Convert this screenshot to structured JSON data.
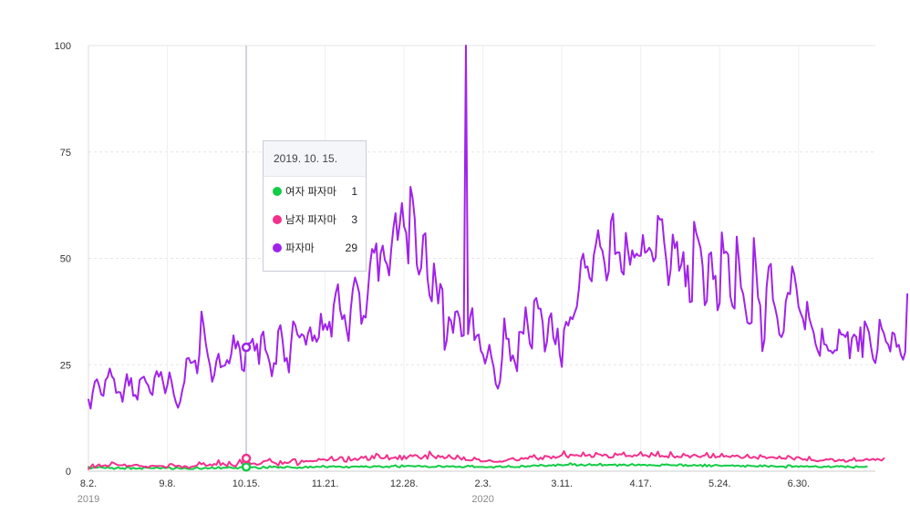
{
  "chart_data": {
    "type": "line",
    "ylim": [
      0,
      100
    ],
    "yticks": [
      "0",
      "25",
      "50",
      "75",
      "100"
    ],
    "grid": true,
    "xticks": [
      {
        "label": "8.2.",
        "index": 0
      },
      {
        "label": "9.8.",
        "index": 37
      },
      {
        "label": "10.15.",
        "index": 74
      },
      {
        "label": "11.21.",
        "index": 111
      },
      {
        "label": "12.28.",
        "index": 148
      },
      {
        "label": "2.3.",
        "index": 185
      },
      {
        "label": "3.11.",
        "index": 222
      },
      {
        "label": "4.17.",
        "index": 259
      },
      {
        "label": "5.24.",
        "index": 296
      },
      {
        "label": "6.30.",
        "index": 333
      }
    ],
    "year_labels": [
      {
        "label": "2019",
        "index": 0
      },
      {
        "label": "2020",
        "index": 185
      }
    ],
    "x_count": 370,
    "hover_index": 74,
    "series": [
      {
        "name": "여자 파자마",
        "color": "#11cc44",
        "values": [
          1,
          0.6,
          0.8,
          1,
          0.8,
          1,
          0.9,
          0.8,
          0.7,
          1,
          0.7,
          0.8,
          0.5,
          0.7,
          0.9,
          0.6,
          0.7,
          0.5,
          0.9,
          0.9,
          0.5,
          0.8,
          0.6,
          0.6,
          0.7,
          0.5,
          0.9,
          0.8,
          0.8,
          0.7,
          0.7,
          0.7,
          0.9,
          0.7,
          0.6,
          0.9,
          0.7,
          0.8,
          0.9,
          0.5,
          0.5,
          0.8,
          0.8,
          0.6,
          0.6,
          0.8,
          0.6,
          0.5,
          0.5,
          0.5,
          0.7,
          0.9,
          0.6,
          0.5,
          0.7,
          0.8,
          0.6,
          0.7,
          0.9,
          0.6,
          0.7,
          1,
          0.6,
          0.8,
          0.8,
          0.8,
          1,
          0.8,
          0.7,
          0.8,
          0.6,
          0.9,
          0.9,
          1.2,
          1,
          0.9,
          0.9,
          0.9,
          1,
          0.8,
          0.6,
          0.7,
          1.1,
          0.8,
          0.7,
          1.2,
          0.9,
          1.1,
          1,
          0.8,
          1,
          0.8,
          0.8,
          1.1,
          1,
          0.9,
          0.8,
          0.8,
          0.7,
          0.9,
          0.7,
          0.9,
          1.1,
          0.8,
          1.1,
          0.9,
          0.9,
          1.1,
          1,
          1,
          1.3,
          1,
          0.9,
          1.1,
          1.1,
          1.2,
          1,
          1.1,
          1.1,
          0.9,
          0.9,
          1.1,
          0.8,
          1,
          1.1,
          1.1,
          1.1,
          1,
          1.2,
          1,
          1.2,
          1,
          0.9,
          1,
          1.2,
          1.1,
          1.2,
          1.1,
          0.9,
          1,
          1.1,
          0.9,
          1.2,
          1.2,
          1.4,
          1,
          0.9,
          1.4,
          1.1,
          1.2,
          1.3,
          1.2,
          1.2,
          1.1,
          1.2,
          1.3,
          1.1,
          1.1,
          1.2,
          1,
          0.9,
          1,
          1,
          1,
          1.3,
          1.2,
          1,
          1,
          1.2,
          1.1,
          1.1,
          1.2,
          1,
          1,
          1.1,
          0.9,
          0.9,
          1.1,
          1.3,
          1.1,
          1.3,
          0.9,
          1,
          1,
          1,
          1,
          0.9,
          0.9,
          1,
          1,
          0.8,
          1.1,
          1.1,
          1.2,
          0.9,
          1,
          1,
          1.3,
          1,
          1,
          0.9,
          1,
          0.9,
          1.3,
          1.2,
          1,
          1.2,
          1.1,
          1.3,
          1.4,
          1.3,
          1.2,
          1.5,
          1.4,
          1.2,
          1.2,
          1.4,
          1.3,
          1.5,
          1.2,
          1.6,
          1.5,
          1.4,
          1.4,
          1.5,
          1.5,
          1.9,
          1.5,
          1.7,
          1.3,
          1.4,
          1.6,
          1.4,
          1.3,
          1.5,
          1.7,
          1.4,
          1.5,
          1.4,
          1.5,
          1.8,
          1.3,
          1.5,
          1.4,
          1.5,
          1.5,
          1.5,
          1.6,
          1.2,
          1.6,
          1.4,
          1.6,
          1.4,
          1.3,
          1.5,
          1.7,
          1.4,
          1.4,
          1.6,
          1.4,
          1.5,
          1.5,
          1.3,
          1.5,
          1.4,
          1.4,
          1.3,
          1.3,
          1.2,
          1.6,
          1.5,
          1.6,
          1.5,
          1.4,
          1.4,
          1.4,
          1.3,
          1.6,
          1.6,
          1.2,
          1.5,
          1.2,
          1.3,
          1.3,
          1.5,
          1.3,
          1.3,
          1.5,
          1.1,
          1.6,
          1.1,
          1.5,
          1.1,
          1.3,
          1.5,
          1.4,
          1.3,
          1.2,
          1.3,
          1.3,
          1.3,
          1.3,
          1.4,
          1.2,
          1.3,
          1.3,
          1.1,
          1.3,
          1,
          1.4,
          1.3,
          1.2,
          1.2,
          1.1,
          1.1,
          1.4,
          1.1,
          1.4,
          1.2,
          1,
          1.3,
          1.2,
          1.1,
          1,
          1.1,
          1.1,
          1.1,
          0.8,
          1.4,
          1.4,
          1,
          1.1,
          1.2,
          1,
          1.2,
          1.1,
          1.1,
          1.2,
          1,
          1.1,
          1.1,
          1.2,
          1,
          0.9,
          0.9,
          1.1,
          1,
          1.2,
          0.9,
          1,
          1.1,
          1.2,
          1.1,
          1.2,
          1.1,
          0.9,
          1.2,
          1,
          0.9,
          0.8,
          1.2,
          1,
          1,
          1,
          1,
          1.1
        ]
      },
      {
        "name": "남자 파자마",
        "color": "#f2318c",
        "values": [
          0.5,
          1,
          1.6,
          0.8,
          1.3,
          1.6,
          1.1,
          1.3,
          1.4,
          1.1,
          1.4,
          2.1,
          1.9,
          1.6,
          1.4,
          1.4,
          1.4,
          1.6,
          1.1,
          1.3,
          1.2,
          1.4,
          1.5,
          1.5,
          1.2,
          1.2,
          1,
          1.1,
          0.8,
          1.2,
          1.3,
          1.2,
          1.2,
          1.2,
          1.2,
          1.2,
          0.9,
          0.9,
          1.6,
          1.7,
          1.4,
          1.1,
          1.3,
          1.2,
          0.8,
          1.2,
          1.1,
          0.7,
          1,
          1.1,
          1.2,
          1.4,
          2.1,
          1.6,
          1.9,
          1.3,
          1.3,
          1.6,
          1.3,
          1.7,
          1.5,
          2.6,
          1.4,
          1.9,
          1.5,
          1.2,
          2.2,
          1.5,
          1.3,
          1.1,
          1.8,
          2.7,
          1.8,
          2.8,
          3,
          2.3,
          1.7,
          1.8,
          1.8,
          1.5,
          1.6,
          1.8,
          2.3,
          2.4,
          2.5,
          2.9,
          2.2,
          2,
          1.8,
          1.3,
          2.4,
          1.7,
          2.1,
          1.9,
          2,
          2.4,
          2.8,
          2.8,
          1.4,
          1.8,
          2.5,
          2.2,
          2.4,
          2.3,
          2.4,
          2.3,
          2.4,
          2.4,
          2.9,
          2.7,
          2.8,
          2.7,
          2.5,
          2.9,
          3.4,
          2.5,
          2.6,
          2.8,
          3.3,
          3.3,
          2.3,
          2.2,
          3.4,
          2.5,
          2.7,
          3,
          2.6,
          2.9,
          3.4,
          3.1,
          3.5,
          2.6,
          2.7,
          3.6,
          3,
          4.1,
          3.8,
          3.1,
          3,
          3.1,
          3.8,
          2.7,
          3.1,
          3.1,
          3.3,
          2.8,
          3.7,
          2.7,
          3.6,
          2.9,
          3.4,
          3.8,
          3.5,
          3.8,
          3.7,
          3.2,
          2.9,
          3.3,
          3.8,
          2.9,
          4.6,
          3.8,
          3.4,
          3,
          3.7,
          3.3,
          3.5,
          3,
          3.2,
          3.8,
          3.3,
          2.9,
          2.9,
          3.7,
          3.2,
          2.7,
          3.3,
          2.6,
          2.6,
          2.5,
          2.6,
          3.2,
          2.8,
          2.8,
          2.3,
          2.3,
          2.3,
          2.4,
          2.6,
          2.4,
          2.2,
          2.2,
          2.2,
          2.3,
          2.2,
          2.4,
          2.5,
          2.8,
          2.9,
          3.1,
          2.7,
          2.5,
          2.6,
          3.1,
          2.9,
          3.1,
          2.9,
          3.5,
          3.3,
          3.8,
          3.1,
          2.7,
          3.2,
          2.8,
          3.6,
          3.5,
          3.4,
          3,
          3.5,
          3.1,
          3.3,
          3.5,
          3.8,
          4.7,
          3.6,
          3.2,
          3.9,
          3.8,
          3.7,
          3.8,
          3.6,
          3.5,
          4.4,
          3.6,
          3.7,
          3.9,
          3.3,
          3.4,
          4.3,
          4,
          3.9,
          3.6,
          3.9,
          3.8,
          3.2,
          3.2,
          3.3,
          4.2,
          3.8,
          4,
          3.9,
          4.4,
          3.5,
          3.6,
          3.6,
          3.4,
          3.8,
          3.6,
          3.9,
          4.5,
          3.6,
          3.8,
          3.6,
          3.3,
          4.3,
          3.8,
          3.6,
          4.6,
          3.4,
          3.6,
          3.4,
          3.5,
          3.2,
          4.5,
          3.6,
          3.2,
          3.5,
          3.3,
          3.3,
          4.1,
          3.7,
          3.7,
          3.2,
          3.6,
          3.9,
          3.7,
          3.4,
          3.3,
          3.6,
          3.7,
          4.3,
          3.3,
          3.2,
          4.1,
          3.2,
          3.4,
          3.4,
          4.1,
          3.4,
          3.6,
          3.4,
          3.3,
          3.7,
          3.5,
          3.7,
          3.5,
          3.1,
          3.1,
          3.4,
          3.9,
          3.2,
          3.1,
          3.4,
          3.2,
          2.9,
          3.8,
          3.4,
          3.4,
          3,
          3.2,
          3.3,
          3.3,
          3.1,
          3,
          3.5,
          3,
          3,
          2.9,
          3.6,
          3.4,
          3,
          2.7,
          3.3,
          3.3,
          3,
          2.7,
          2.8,
          2.5,
          3.4,
          2.6,
          2.6,
          2.4,
          2.3,
          2.5,
          2.5,
          2.6,
          2.8,
          2.7,
          2.9,
          2.8,
          2.3,
          2.4,
          2.7,
          2.5,
          2.7,
          2.2,
          2.3,
          2.6,
          2.6,
          3.1,
          2.4,
          2.5,
          2.5,
          2.5,
          2.7,
          2.9,
          2.6,
          2.7,
          2.9,
          2.6,
          2.9,
          2.7,
          2.5,
          3
        ]
      },
      {
        "name": "파자마",
        "color": "#a023ea",
        "values": [
          16.8,
          14.7,
          18.5,
          21,
          21.6,
          20.1,
          18,
          17.7,
          21.4,
          22.1,
          24.1,
          22.3,
          21.6,
          18.4,
          18.6,
          18.5,
          16.3,
          19.8,
          22.8,
          20.1,
          21.9,
          17.7,
          17.9,
          16.8,
          21.4,
          21.9,
          22.2,
          20.9,
          20.2,
          18.5,
          17.9,
          22,
          23.5,
          22.2,
          23.3,
          20.9,
          18.3,
          20.2,
          23.2,
          21,
          18.1,
          16.2,
          14.9,
          16.3,
          19,
          21,
          26.4,
          26.6,
          25.4,
          25.6,
          26,
          23,
          27.3,
          37.5,
          34.3,
          30.1,
          27.1,
          24.8,
          21,
          22.6,
          25.9,
          27.6,
          24.4,
          24.7,
          24.8,
          26.1,
          25.3,
          27.6,
          31.9,
          28.8,
          30.5,
          28.7,
          23.9,
          23.5,
          29.1,
          30,
          30.1,
          31.1,
          28.3,
          29.9,
          25.2,
          31.7,
          32.8,
          28.5,
          27.3,
          25.4,
          22.3,
          25.4,
          25.2,
          33,
          34.3,
          30.9,
          25.8,
          26.6,
          23.2,
          29.9,
          35.2,
          34.3,
          32.1,
          31.4,
          32.2,
          31.8,
          29.7,
          32.4,
          33.8,
          30.6,
          31.9,
          30.4,
          31.4,
          37,
          33.2,
          34.6,
          33.2,
          35.1,
          31.6,
          38.9,
          41.9,
          43.9,
          38,
          35.7,
          36.7,
          33.4,
          30.6,
          38,
          42.8,
          45.5,
          43.9,
          41.8,
          34.6,
          36.5,
          36.1,
          41.8,
          48.2,
          52.2,
          51.3,
          53.5,
          44.7,
          51.2,
          53,
          49.6,
          48.6,
          46,
          52.2,
          57.1,
          60.6,
          54.3,
          58.2,
          63,
          57.5,
          56,
          48.8,
          66.8,
          64.2,
          59.4,
          48.4,
          46.2,
          47.7,
          55.4,
          55.9,
          45.3,
          41.2,
          39.9,
          48.8,
          44.3,
          39.4,
          44,
          42.7,
          28.5,
          30.7,
          36.2,
          35.3,
          32.5,
          37.4,
          37.6,
          36,
          31.7,
          31.9,
          100,
          32.2,
          36.3,
          38.3,
          30.8,
          31.8,
          32.1,
          28.3,
          27.4,
          25.3,
          27.2,
          29.7,
          26.7,
          24.5,
          20.5,
          19.4,
          21.1,
          26.7,
          35.9,
          31.1,
          31.1,
          25.9,
          27.2,
          25.5,
          23.5,
          32.7,
          32.7,
          32.3,
          38.5,
          34.2,
          29.9,
          28.8,
          40,
          40.7,
          38.2,
          38.2,
          34.9,
          28.1,
          30.4,
          35.9,
          37.1,
          31.4,
          29.8,
          33.5,
          27.5,
          24.5,
          33.2,
          35.1,
          34.2,
          36.2,
          35.7,
          37.2,
          38.6,
          42.9,
          49.4,
          51.1,
          47.8,
          48.1,
          45.4,
          44.6,
          50.8,
          53.4,
          56.6,
          52.8,
          51.8,
          48.9,
          44.8,
          47,
          58.6,
          60.5,
          51,
          51.4,
          51.4,
          46.9,
          46.2,
          56,
          51.9,
          48.5,
          51.9,
          50.2,
          51.1,
          50.6,
          50.6,
          55.5,
          51.3,
          51.7,
          52.5,
          51.6,
          49.3,
          50.2,
          60,
          59.1,
          59.2,
          53.7,
          49.5,
          43.7,
          47.4,
          55.6,
          52.4,
          53.9,
          47.1,
          48.5,
          51.5,
          43.4,
          48.3,
          39.7,
          39.9,
          58.6,
          56,
          54.3,
          52.5,
          48.2,
          39,
          40,
          50.9,
          51.4,
          45.1,
          45.9,
          37.8,
          39.5,
          56.1,
          51.2,
          51.6,
          50.9,
          41.1,
          38.8,
          38.2,
          55.1,
          49.6,
          43.2,
          41.7,
          38.3,
          34.9,
          34.6,
          34.9,
          54.8,
          48.2,
          40.8,
          39,
          28.2,
          30.9,
          43.2,
          48,
          48.7,
          40.3,
          38.4,
          36,
          32.1,
          31.5,
          32.8,
          39.9,
          41.9,
          41.6,
          48.1,
          46.2,
          43,
          38.6,
          37.1,
          35.9,
          33.3,
          39.8,
          36,
          34.2,
          32.7,
          29.8,
          28.3,
          27.1,
          33.5,
          29.8,
          29.7,
          28.3,
          28.3,
          27.7,
          28.4,
          28.4,
          33.3,
          32.1,
          32.1,
          31.5,
          32.7,
          26.5,
          31.2,
          32.1,
          31.6,
          28.2,
          33.8,
          26.8,
          35.2,
          34.1,
          32.6,
          29.1,
          26.3,
          25.4,
          28.5,
          35.6,
          33.5,
          32.4,
          30.4,
          29.8,
          28.1,
          32.6,
          32.2,
          29.2,
          29.7,
          27.3,
          26.2,
          28,
          41.6
        ]
      }
    ]
  },
  "tooltip": {
    "date": "2019. 10. 15.",
    "rows": [
      {
        "name": "여자 파자마",
        "value": "1",
        "color": "#11cc44"
      },
      {
        "name": "남자 파자마",
        "value": "3",
        "color": "#f2318c"
      },
      {
        "name": "파자마",
        "value": "29",
        "color": "#a023ea"
      }
    ]
  }
}
